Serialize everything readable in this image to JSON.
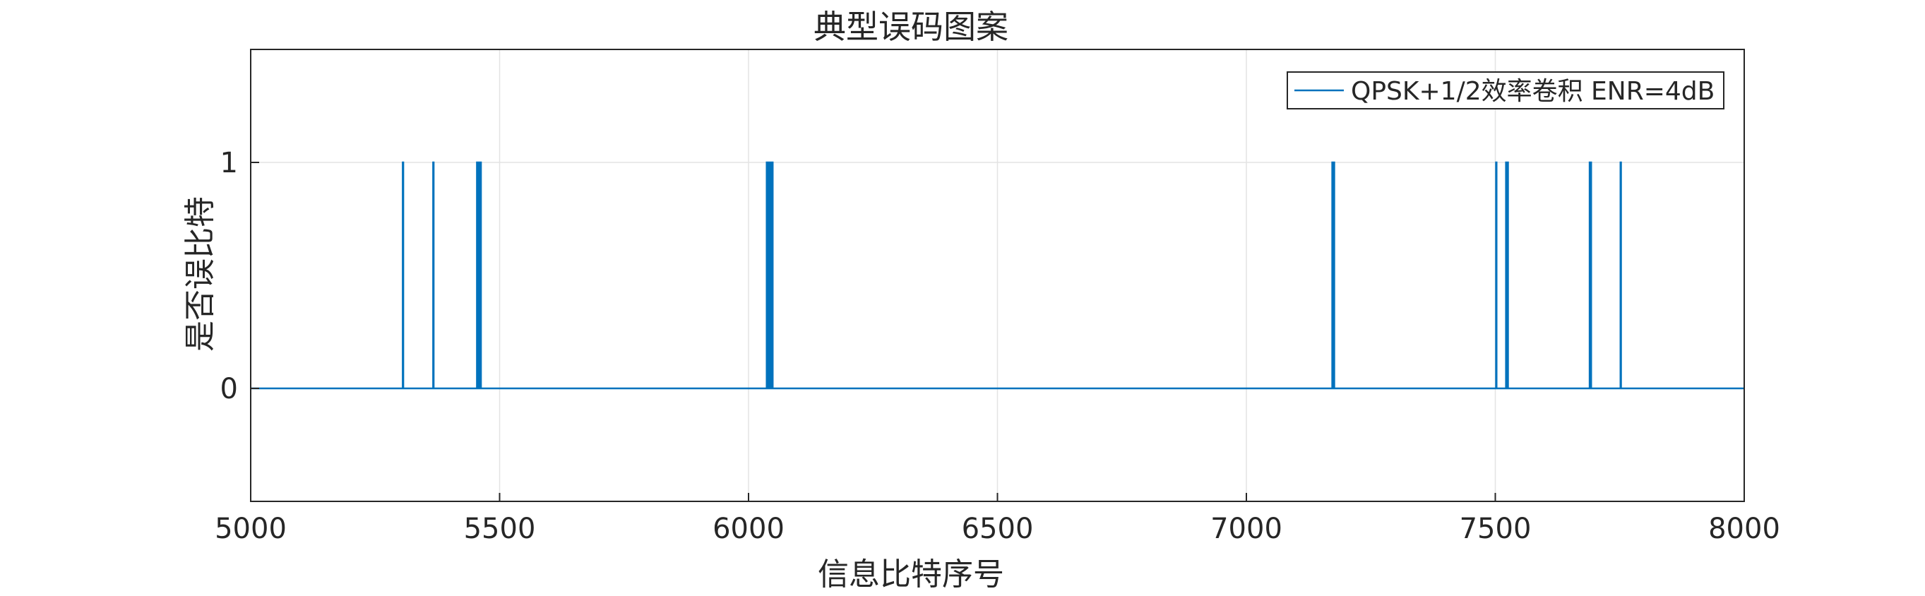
{
  "chart_data": {
    "type": "line",
    "title": "典型误码图案",
    "xlabel": "信息比特序号",
    "ylabel": "是否误比特",
    "xlim": [
      5000,
      8000
    ],
    "ylim": [
      -0.5,
      1.5
    ],
    "xticks": [
      5000,
      5500,
      6000,
      6500,
      7000,
      7500,
      8000
    ],
    "yticks": [
      0,
      1
    ],
    "grid": true,
    "legend_placement": "top-right",
    "series": [
      {
        "name": "QPSK+1/2效率卷积 ENR=4dB",
        "color": "#0072BD",
        "baseline": 0,
        "error_positions": [
          5306,
          5367,
          5455,
          5458,
          5462,
          6037,
          6040,
          6042,
          6045,
          6048,
          7173,
          7176,
          7502,
          7522,
          7525,
          7690,
          7692,
          7752
        ]
      }
    ]
  }
}
